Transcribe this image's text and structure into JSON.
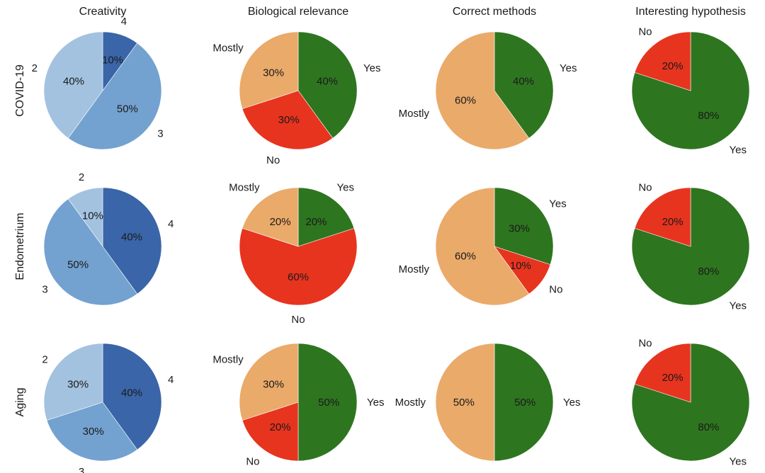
{
  "colors": {
    "Yes": "#2e7520",
    "Mostly": "#eaaa6a",
    "No": "#e7341f",
    "2": "#a3c2e0",
    "3": "#73a2d0",
    "4": "#3a65a8"
  },
  "figure": {
    "column_titles": [
      "Creativity",
      "Biological relevance",
      "Correct methods",
      "Interesting hypothesis"
    ],
    "row_labels": [
      "COVID-19",
      "Endometrium",
      "Aging"
    ]
  },
  "chart_data": [
    {
      "type": "pie",
      "row": "COVID-19",
      "title": "Creativity",
      "slices": [
        {
          "label": "4",
          "value": 10,
          "pct": "10%"
        },
        {
          "label": "3",
          "value": 50,
          "pct": "50%"
        },
        {
          "label": "2",
          "value": 40,
          "pct": "40%"
        }
      ]
    },
    {
      "type": "pie",
      "row": "COVID-19",
      "title": "Biological relevance",
      "slices": [
        {
          "label": "Yes",
          "value": 40,
          "pct": "40%"
        },
        {
          "label": "No",
          "value": 30,
          "pct": "30%"
        },
        {
          "label": "Mostly",
          "value": 30,
          "pct": "30%"
        }
      ]
    },
    {
      "type": "pie",
      "row": "COVID-19",
      "title": "Correct methods",
      "slices": [
        {
          "label": "Yes",
          "value": 40,
          "pct": "40%"
        },
        {
          "label": "Mostly",
          "value": 60,
          "pct": "60%"
        }
      ]
    },
    {
      "type": "pie",
      "row": "COVID-19",
      "title": "Interesting hypothesis",
      "slices": [
        {
          "label": "Yes",
          "value": 80,
          "pct": "80%"
        },
        {
          "label": "No",
          "value": 20,
          "pct": "20%"
        }
      ]
    },
    {
      "type": "pie",
      "row": "Endometrium",
      "title": "Creativity",
      "slices": [
        {
          "label": "4",
          "value": 40,
          "pct": "40%"
        },
        {
          "label": "3",
          "value": 50,
          "pct": "50%"
        },
        {
          "label": "2",
          "value": 10,
          "pct": "10%"
        }
      ]
    },
    {
      "type": "pie",
      "row": "Endometrium",
      "title": "Biological relevance",
      "slices": [
        {
          "label": "Yes",
          "value": 20,
          "pct": "20%"
        },
        {
          "label": "No",
          "value": 60,
          "pct": "60%"
        },
        {
          "label": "Mostly",
          "value": 20,
          "pct": "20%"
        }
      ]
    },
    {
      "type": "pie",
      "row": "Endometrium",
      "title": "Correct methods",
      "slices": [
        {
          "label": "Yes",
          "value": 30,
          "pct": "30%"
        },
        {
          "label": "No",
          "value": 10,
          "pct": "10%"
        },
        {
          "label": "Mostly",
          "value": 60,
          "pct": "60%"
        }
      ]
    },
    {
      "type": "pie",
      "row": "Endometrium",
      "title": "Interesting hypothesis",
      "slices": [
        {
          "label": "Yes",
          "value": 80,
          "pct": "80%"
        },
        {
          "label": "No",
          "value": 20,
          "pct": "20%"
        }
      ]
    },
    {
      "type": "pie",
      "row": "Aging",
      "title": "Creativity",
      "slices": [
        {
          "label": "4",
          "value": 40,
          "pct": "40%"
        },
        {
          "label": "3",
          "value": 30,
          "pct": "30%"
        },
        {
          "label": "2",
          "value": 30,
          "pct": "30%"
        }
      ]
    },
    {
      "type": "pie",
      "row": "Aging",
      "title": "Biological relevance",
      "slices": [
        {
          "label": "Yes",
          "value": 50,
          "pct": "50%"
        },
        {
          "label": "No",
          "value": 20,
          "pct": "20%"
        },
        {
          "label": "Mostly",
          "value": 30,
          "pct": "30%"
        }
      ]
    },
    {
      "type": "pie",
      "row": "Aging",
      "title": "Correct methods",
      "slices": [
        {
          "label": "Yes",
          "value": 50,
          "pct": "50%"
        },
        {
          "label": "Mostly",
          "value": 50,
          "pct": "50%"
        }
      ]
    },
    {
      "type": "pie",
      "row": "Aging",
      "title": "Interesting hypothesis",
      "slices": [
        {
          "label": "Yes",
          "value": 80,
          "pct": "80%"
        },
        {
          "label": "No",
          "value": 20,
          "pct": "20%"
        }
      ]
    }
  ]
}
